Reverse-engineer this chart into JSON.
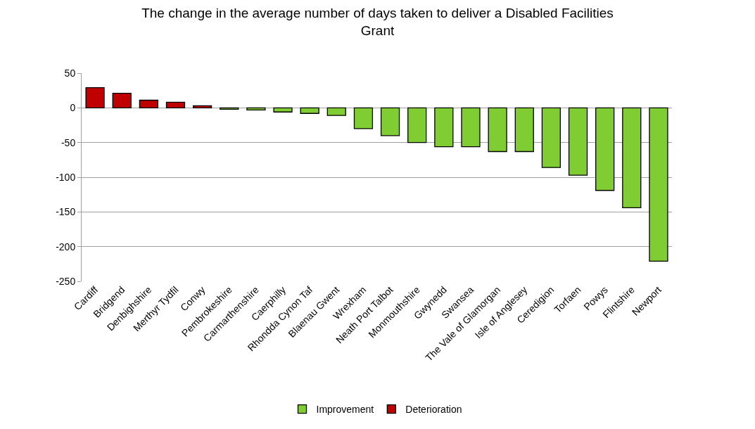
{
  "chart_data": {
    "type": "bar",
    "title": "The change in the average number of days taken to deliver a Disabled Facilities Grant",
    "categories": [
      "Cardiff",
      "Bridgend",
      "Denbighshire",
      "Merthyr Tydfil",
      "Conwy",
      "Pembrokeshire",
      "Carmarthenshire",
      "Caerphilly",
      "Rhondda Cynon Taf",
      "Blaenau Gwent",
      "Wrexham",
      "Neath Port Talbot",
      "Monmouthshire",
      "Gwynedd",
      "Swansea",
      "The Vale of Glamorgan",
      "Isle of Anglesey",
      "Ceredigion",
      "Torfaen",
      "Powys",
      "Flintshire",
      "Newport"
    ],
    "series": [
      {
        "name": "Improvement",
        "color": "#80cc33",
        "values": [
          null,
          null,
          null,
          null,
          null,
          -2,
          -3,
          -6,
          -8,
          -11,
          -30,
          -40,
          -50,
          -56,
          -56,
          -63,
          -63,
          -86,
          -97,
          -119,
          -144,
          -221
        ]
      },
      {
        "name": "Deterioration",
        "color": "#c00000",
        "values": [
          29,
          21,
          11,
          8,
          3,
          null,
          null,
          null,
          null,
          null,
          null,
          null,
          null,
          null,
          null,
          null,
          null,
          null,
          null,
          null,
          null,
          null
        ]
      }
    ],
    "ylim": [
      -250,
      50
    ],
    "yticks": [
      -250,
      -200,
      -150,
      -100,
      -50,
      0,
      50
    ],
    "grid": "y",
    "legend": "bottom"
  }
}
